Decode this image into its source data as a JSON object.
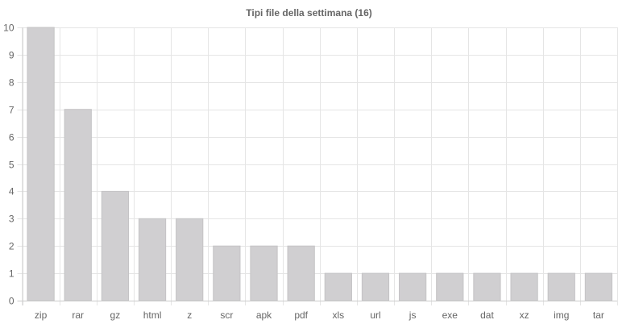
{
  "chart_data": {
    "type": "bar",
    "title": "Tipi file della settimana (16)",
    "xlabel": "",
    "ylabel": "",
    "categories": [
      "zip",
      "rar",
      "gz",
      "html",
      "z",
      "scr",
      "apk",
      "pdf",
      "xls",
      "url",
      "js",
      "exe",
      "dat",
      "xz",
      "img",
      "tar"
    ],
    "values": [
      10,
      7,
      4,
      3,
      3,
      2,
      2,
      2,
      1,
      1,
      1,
      1,
      1,
      1,
      1,
      1
    ],
    "ylim": [
      0,
      10
    ],
    "yticks": [
      0,
      1,
      2,
      3,
      4,
      5,
      6,
      7,
      8,
      9,
      10
    ],
    "grid": true,
    "legend": "none",
    "colors": {
      "bar_fill": "#d0cfd1",
      "bar_stroke": "#c4c3c5",
      "grid": "#e5e5e5",
      "axis": "#cccccc",
      "text": "#666666"
    }
  }
}
